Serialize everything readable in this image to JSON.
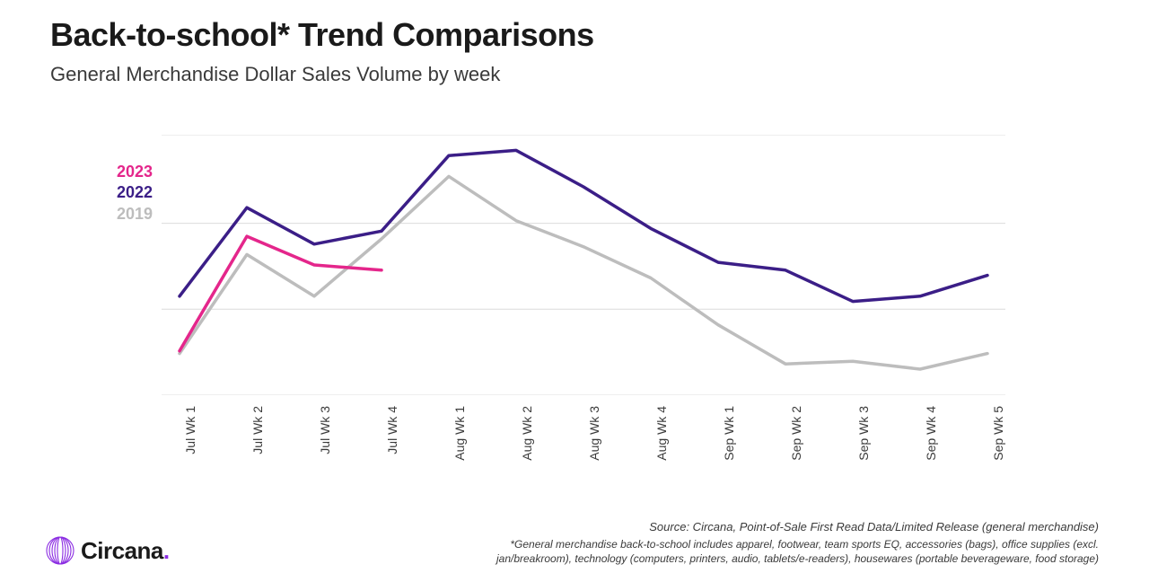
{
  "title": "Back-to-school* Trend Comparisons",
  "subtitle": "General Merchandise Dollar Sales Volume by week",
  "chart": {
    "type": "line",
    "background_color": "#ffffff",
    "grid_color": "#dcdcdc",
    "grid_line_width": 1,
    "line_width": 3.5,
    "ylim": [
      0,
      100
    ],
    "y_gridlines": [
      0,
      33,
      66,
      100
    ],
    "x_labels": [
      "Jul Wk 1",
      "Jul Wk 2",
      "Jul Wk 3",
      "Jul Wk 4",
      "Aug Wk 1",
      "Aug Wk 2",
      "Aug Wk 3",
      "Aug Wk 4",
      "Sep Wk 1",
      "Sep Wk 2",
      "Sep Wk 3",
      "Sep Wk 4",
      "Sep Wk 5"
    ],
    "xlabel_fontsize": 14,
    "xlabel_rotation": -90,
    "series": [
      {
        "name": "2023",
        "color": "#e4268b",
        "values": [
          17,
          61,
          50,
          48
        ]
      },
      {
        "name": "2022",
        "color": "#3b1e87",
        "values": [
          38,
          72,
          58,
          63,
          92,
          94,
          80,
          64,
          51,
          48,
          36,
          38,
          46
        ]
      },
      {
        "name": "2019",
        "color": "#bdbdbd",
        "values": [
          16,
          54,
          38,
          60,
          84,
          67,
          57,
          45,
          27,
          12,
          13,
          10,
          16
        ]
      }
    ],
    "legend": {
      "position": "left",
      "fontsize": 18,
      "fontweight": 700
    }
  },
  "logo": {
    "text": "Circana",
    "dot_color": "#8a2be2",
    "icon_color": "#8a2be2"
  },
  "footnotes": {
    "source": "Source: Circana, Point-of-Sale First Read Data/Limited Release (general merchandise)",
    "note": "*General merchandise back-to-school includes apparel, footwear, team sports EQ, accessories (bags), office supplies (excl. jan/breakroom), technology (computers, printers, audio, tablets/e-readers), housewares (portable beverageware, food storage)"
  }
}
